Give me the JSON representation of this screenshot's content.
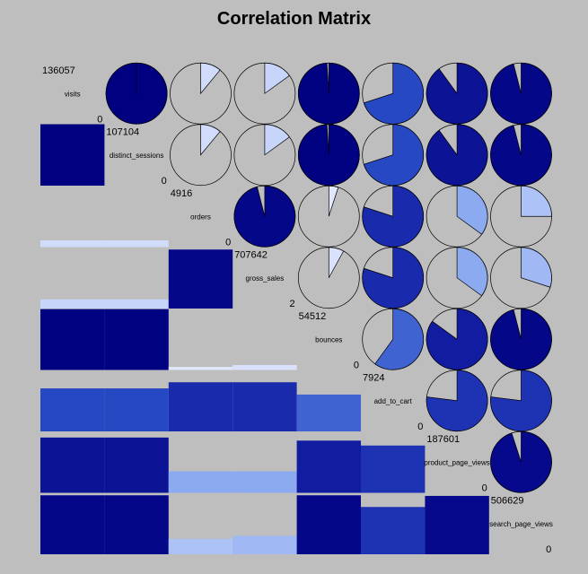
{
  "chart_data": {
    "type": "heatmap",
    "title": "Correlation Matrix",
    "variables": [
      "visits",
      "distinct_sessions",
      "orders",
      "gross_sales",
      "bounces",
      "add_to_cart",
      "product_page_views",
      "search_page_views"
    ],
    "ranges": [
      {
        "max": "136057",
        "min": "0"
      },
      {
        "max": "107104",
        "min": "0"
      },
      {
        "max": "4916",
        "min": "0"
      },
      {
        "max": "707642",
        "min": "2"
      },
      {
        "max": "54512",
        "min": "0"
      },
      {
        "max": "7924",
        "min": "0"
      },
      {
        "max": "187601",
        "min": "0"
      },
      {
        "max": "506629",
        "min": "0"
      }
    ],
    "upper_panel": "pie",
    "lower_panel": "shade",
    "correlations": [
      [
        1.0,
        1.0,
        0.11,
        0.15,
        0.99,
        0.7,
        0.9,
        0.96
      ],
      [
        1.0,
        1.0,
        0.11,
        0.15,
        0.99,
        0.7,
        0.9,
        0.96
      ],
      [
        0.11,
        0.11,
        1.0,
        0.96,
        0.05,
        0.8,
        0.35,
        0.25
      ],
      [
        0.15,
        0.15,
        0.96,
        1.0,
        0.08,
        0.8,
        0.35,
        0.3
      ],
      [
        0.99,
        0.99,
        0.05,
        0.08,
        1.0,
        0.6,
        0.85,
        0.96
      ],
      [
        0.7,
        0.7,
        0.8,
        0.8,
        0.6,
        1.0,
        0.77,
        0.77
      ],
      [
        0.9,
        0.9,
        0.35,
        0.35,
        0.85,
        0.77,
        1.0,
        0.95
      ],
      [
        0.96,
        0.96,
        0.25,
        0.3,
        0.96,
        0.77,
        0.95,
        1.0
      ]
    ]
  }
}
